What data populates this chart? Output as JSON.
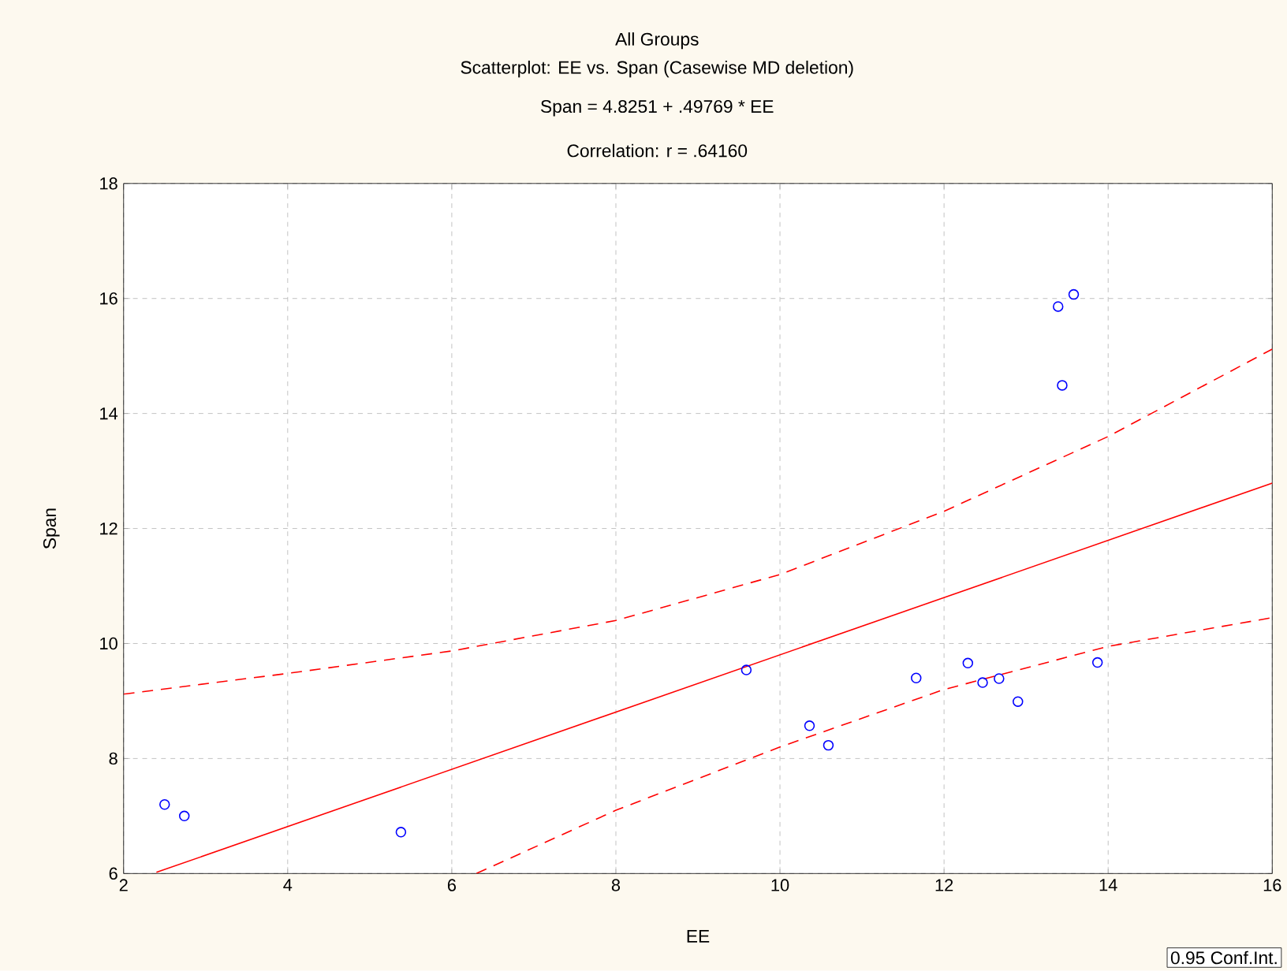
{
  "chart_data": {
    "type": "scatter",
    "title": "All Groups",
    "subtitle": "Scatterplot: EE vs. Span (Casewise MD deletion)",
    "xlabel": "EE",
    "ylabel": "Span",
    "annotations": [
      "Span = 4.8251 + .49769 * EE",
      "Correlation: r = .64160",
      "0.95 Conf.Int."
    ],
    "xlim": [
      2,
      16
    ],
    "ylim": [
      6,
      18
    ],
    "xticks": [
      2,
      4,
      6,
      8,
      10,
      12,
      14,
      16
    ],
    "yticks": [
      6,
      8,
      10,
      12,
      14,
      16,
      18
    ],
    "grid": true,
    "marker": "circle",
    "series": [
      {
        "color": "#0000ff",
        "x": [
          2.5,
          2.74,
          5.38,
          9.59,
          10.36,
          10.59,
          11.66,
          12.29,
          12.47,
          12.67,
          12.9,
          13.87,
          13.58,
          13.39,
          13.44
        ],
        "values": [
          7.2,
          7.0,
          6.72,
          9.54,
          8.57,
          8.23,
          9.4,
          9.66,
          9.32,
          9.39,
          8.99,
          9.67,
          16.07,
          15.86,
          14.49
        ]
      },
      {
        "type": "line",
        "color": "#ff0000",
        "marker": "none",
        "line_style": "solid",
        "x": [
          2.4,
          16
        ],
        "values": [
          6.02,
          12.79
        ]
      },
      {
        "type": "line",
        "color": "#ff0000",
        "marker": "none",
        "line_style": "dashed",
        "x": [
          2,
          4,
          6,
          8,
          10,
          12,
          14,
          16
        ],
        "values": [
          9.12,
          9.48,
          9.87,
          10.4,
          11.2,
          12.3,
          13.6,
          15.12
        ]
      },
      {
        "type": "line",
        "color": "#ff0000",
        "marker": "none",
        "line_style": "dashed",
        "x": [
          6.3,
          8,
          10,
          12,
          14,
          16
        ],
        "values": [
          6.0,
          7.1,
          8.2,
          9.2,
          9.95,
          10.45
        ]
      }
    ]
  }
}
